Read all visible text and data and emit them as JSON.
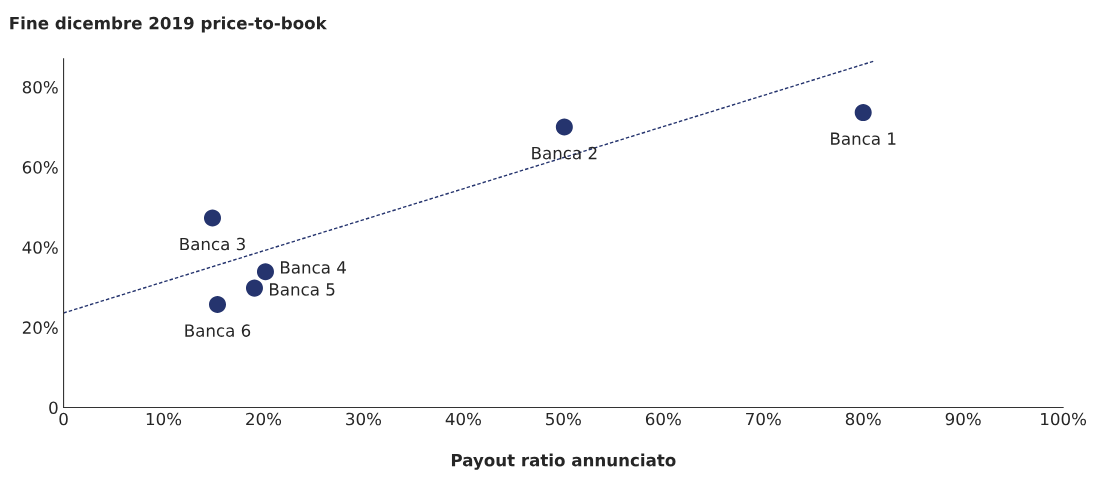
{
  "chart_data": {
    "type": "scatter",
    "title": "Fine dicembre 2019 price-to-book",
    "xlabel": "Payout ratio annunciato",
    "x": [
      80.0,
      50.1,
      14.9,
      20.2,
      19.1,
      15.4
    ],
    "series": [
      {
        "color": "#25346e",
        "values": [
          73.6,
          70.0,
          47.3,
          33.9,
          29.8,
          25.7
        ],
        "marker": "circle"
      },
      {
        "type": "line",
        "color": "#25346e",
        "x": [
          0,
          81
        ],
        "values": [
          23.6,
          86.4
        ],
        "line_style": "dashed",
        "marker": "none"
      }
    ],
    "annotations": [
      {
        "text": "Banca 1",
        "x": 80.0,
        "y": 73.6
      },
      {
        "text": "Banca 2",
        "x": 50.1,
        "y": 70.0
      },
      {
        "text": "Banca 3",
        "x": 14.9,
        "y": 47.3
      },
      {
        "text": "Banca 4",
        "x": 20.2,
        "y": 33.9
      },
      {
        "text": "Banca 5",
        "x": 19.1,
        "y": 29.8
      },
      {
        "text": "Banca 6",
        "x": 15.4,
        "y": 25.7
      }
    ],
    "xlim": [
      0,
      100
    ],
    "ylim": [
      0,
      87
    ],
    "xticks": [
      {
        "value": 0,
        "label": "0"
      },
      {
        "value": 10,
        "label": "10%"
      },
      {
        "value": 20,
        "label": "20%"
      },
      {
        "value": 30,
        "label": "30%"
      },
      {
        "value": 40,
        "label": "40%"
      },
      {
        "value": 50,
        "label": "50%"
      },
      {
        "value": 60,
        "label": "60%"
      },
      {
        "value": 70,
        "label": "70%"
      },
      {
        "value": 80,
        "label": "80%"
      },
      {
        "value": 90,
        "label": "90%"
      },
      {
        "value": 100,
        "label": "100%"
      }
    ],
    "yticks": [
      {
        "value": 0,
        "label": "0"
      },
      {
        "value": 20,
        "label": "20%"
      },
      {
        "value": 40,
        "label": "40%"
      },
      {
        "value": 60,
        "label": "60%"
      },
      {
        "value": 80,
        "label": "80%"
      }
    ],
    "grid": false,
    "legend": false
  }
}
